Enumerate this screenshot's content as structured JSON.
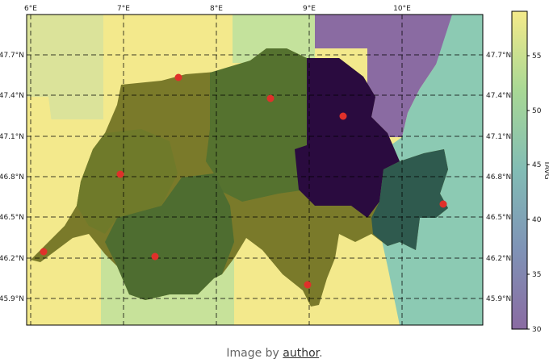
{
  "map": {
    "lon_labels": [
      "6°E",
      "7°E",
      "8°E",
      "9°E",
      "10°E"
    ],
    "lat_labels": [
      "47.7°N",
      "47.4°N",
      "47.1°N",
      "46.8°N",
      "46.5°N",
      "46.2°N",
      "45.9°N"
    ],
    "colorbar": {
      "label": "TAVG",
      "ticks": [
        "55",
        "50",
        "45",
        "40",
        "35",
        "30"
      ],
      "colormap": "viridis (alpha 0.6)",
      "range": [
        30,
        59
      ]
    },
    "stations_color": "#e0302a"
  },
  "caption": {
    "prefix": "Image by ",
    "link_text": "author",
    "suffix": "."
  }
}
